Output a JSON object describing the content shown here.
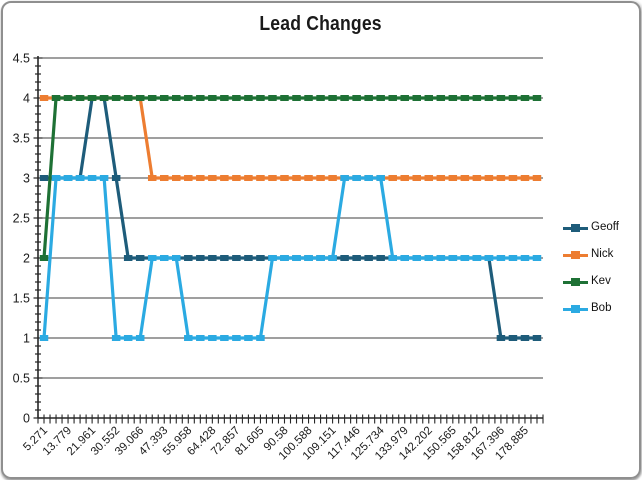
{
  "chart_data": {
    "type": "line",
    "title": "Lead Changes",
    "xlabel": "",
    "ylabel": "",
    "ylim": [
      0,
      4.5
    ],
    "y_major_step": 0.5,
    "y_minor_step": 0.1,
    "grid": "horizontal",
    "legend_position": "right",
    "y_tick_labels": [
      "4.5",
      "4",
      "3.5",
      "3",
      "2.5",
      "2",
      "1.5",
      "1",
      "0.5",
      "0"
    ],
    "x_tick_labels": [
      "5.271",
      "13.779",
      "21.961",
      "30.552",
      "39.066",
      "47.393",
      "55.958",
      "64.428",
      "72.857",
      "81.605",
      "90.58",
      "100.588",
      "109.151",
      "117.446",
      "125.734",
      "133.979",
      "142.202",
      "150.565",
      "158.812",
      "167.396",
      "178.885"
    ],
    "x_label_step": 2,
    "n_points": 42,
    "series": [
      {
        "name": "Geoff",
        "color": "#1E5C7A",
        "values": [
          3,
          3,
          3,
          3,
          4,
          4,
          3,
          2,
          2,
          2,
          2,
          2,
          2,
          2,
          2,
          2,
          2,
          2,
          2,
          2,
          2,
          2,
          2,
          2,
          2,
          2,
          2,
          2,
          2,
          2,
          2,
          2,
          2,
          2,
          2,
          2,
          2,
          2,
          1,
          1,
          1,
          1
        ]
      },
      {
        "name": "Nick",
        "color": "#ED7D31",
        "values": [
          4,
          4,
          4,
          4,
          4,
          4,
          4,
          4,
          4,
          3,
          3,
          3,
          3,
          3,
          3,
          3,
          3,
          3,
          3,
          3,
          3,
          3,
          3,
          3,
          3,
          3,
          3,
          3,
          3,
          3,
          3,
          3,
          3,
          3,
          3,
          3,
          3,
          3,
          3,
          3,
          3,
          3
        ]
      },
      {
        "name": "Kev",
        "color": "#1E7135",
        "values": [
          2,
          4,
          4,
          4,
          4,
          4,
          4,
          4,
          4,
          4,
          4,
          4,
          4,
          4,
          4,
          4,
          4,
          4,
          4,
          4,
          4,
          4,
          4,
          4,
          4,
          4,
          4,
          4,
          4,
          4,
          4,
          4,
          4,
          4,
          4,
          4,
          4,
          4,
          4,
          4,
          4,
          4
        ]
      },
      {
        "name": "Bob",
        "color": "#2BAAE2",
        "values": [
          1,
          3,
          3,
          3,
          3,
          3,
          1,
          1,
          1,
          2,
          2,
          2,
          1,
          1,
          1,
          1,
          1,
          1,
          1,
          2,
          2,
          2,
          2,
          2,
          2,
          3,
          3,
          3,
          3,
          2,
          2,
          2,
          2,
          2,
          2,
          2,
          2,
          2,
          2,
          2,
          2,
          2
        ]
      }
    ]
  }
}
